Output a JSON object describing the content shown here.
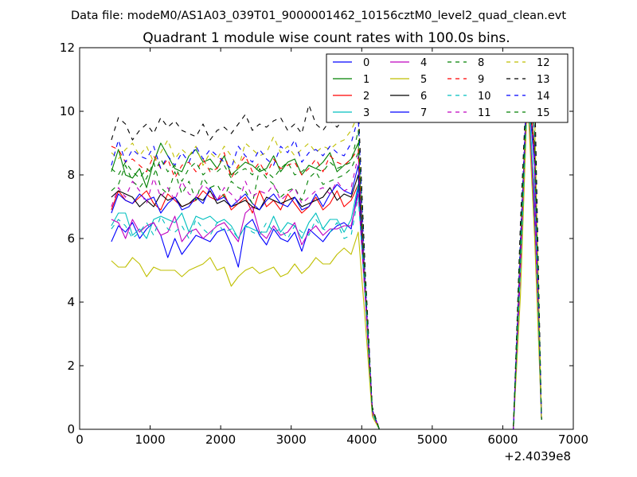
{
  "chart_data": {
    "type": "line",
    "suptitle": "Data file: modeM0/AS1A03_039T01_9000001462_10156cztM0_level2_quad_clean.evt",
    "title": "Quadrant 1 module wise count rates with 100.0s bins.",
    "xlabel": "",
    "ylabel": "",
    "xlim": [
      0,
      7000
    ],
    "ylim": [
      0,
      12
    ],
    "x_offset_label": "+2.4039e8",
    "xticks": [
      0,
      1000,
      2000,
      3000,
      4000,
      5000,
      6000,
      7000
    ],
    "yticks": [
      0,
      2,
      4,
      6,
      8,
      10,
      12
    ],
    "grid": false,
    "legend_position": "top-right",
    "x": [
      450,
      550,
      650,
      750,
      850,
      950,
      1050,
      1150,
      1250,
      1350,
      1450,
      1550,
      1650,
      1750,
      1850,
      1950,
      2050,
      2150,
      2250,
      2350,
      2450,
      2550,
      2650,
      2750,
      2850,
      2950,
      3050,
      3150,
      3250,
      3350,
      3450,
      3550,
      3650,
      3750,
      3850,
      3950,
      4050,
      4150,
      4250,
      6150,
      6250,
      6350,
      6450,
      6550
    ],
    "series": [
      {
        "name": "0",
        "color": "#0000ff",
        "dash": "solid",
        "values": [
          5.9,
          6.4,
          6.2,
          6.5,
          6.0,
          6.3,
          6.5,
          6.1,
          5.4,
          6.0,
          5.5,
          5.8,
          6.1,
          6.0,
          5.9,
          6.2,
          6.3,
          5.8,
          5.1,
          6.4,
          6.6,
          6.1,
          5.8,
          6.3,
          6.0,
          5.9,
          6.2,
          5.6,
          6.3,
          6.1,
          5.9,
          6.2,
          6.4,
          6.5,
          6.3,
          7.6,
          4.2,
          0.5,
          0,
          0,
          5.0,
          11.0,
          6.6,
          0.3
        ]
      },
      {
        "name": "1",
        "color": "#008000",
        "dash": "solid",
        "values": [
          8.1,
          8.8,
          8.0,
          7.9,
          8.2,
          7.6,
          8.4,
          9.0,
          8.6,
          8.2,
          8.1,
          8.6,
          8.8,
          8.4,
          8.5,
          8.2,
          8.6,
          8.0,
          8.2,
          8.4,
          8.3,
          8.1,
          8.2,
          8.6,
          8.1,
          8.4,
          8.5,
          8.0,
          8.3,
          8.2,
          8.4,
          8.7,
          8.1,
          8.3,
          8.5,
          9.0,
          4.5,
          0.6,
          0,
          0,
          5.8,
          11.1,
          8.9,
          0.3
        ]
      },
      {
        "name": "2",
        "color": "#ff0000",
        "dash": "solid",
        "values": [
          6.9,
          7.5,
          7.2,
          7.1,
          7.3,
          7.5,
          7.1,
          6.9,
          7.4,
          7.2,
          7.0,
          7.1,
          7.2,
          7.5,
          7.3,
          7.2,
          7.4,
          6.9,
          7.1,
          7.3,
          6.8,
          7.5,
          7.0,
          7.2,
          6.9,
          7.4,
          7.1,
          6.8,
          7.0,
          7.3,
          6.9,
          7.1,
          7.5,
          7.0,
          7.2,
          7.7,
          4.3,
          0.6,
          0,
          0,
          5.3,
          10.8,
          7.4,
          0.3
        ]
      },
      {
        "name": "3",
        "color": "#00bfbf",
        "dash": "solid",
        "values": [
          6.4,
          6.8,
          6.8,
          6.1,
          6.3,
          6.0,
          6.6,
          6.7,
          6.6,
          6.5,
          6.8,
          6.2,
          6.7,
          6.6,
          6.7,
          6.5,
          6.6,
          6.4,
          6.0,
          6.4,
          6.3,
          6.2,
          6.2,
          6.7,
          6.2,
          6.5,
          6.4,
          6.0,
          6.5,
          6.8,
          6.3,
          6.6,
          6.6,
          6.2,
          6.6,
          7.7,
          4.3,
          0.6,
          0,
          0,
          5.3,
          11.0,
          7.3,
          0.3
        ]
      },
      {
        "name": "4",
        "color": "#bf00bf",
        "dash": "solid",
        "values": [
          6.6,
          6.5,
          6.0,
          6.6,
          6.2,
          6.4,
          6.5,
          6.1,
          6.2,
          6.7,
          5.9,
          6.2,
          6.3,
          6.0,
          6.2,
          6.4,
          6.5,
          6.2,
          5.9,
          6.8,
          7.0,
          6.2,
          6.0,
          6.4,
          6.1,
          6.2,
          6.5,
          5.8,
          6.2,
          6.4,
          6.1,
          6.3,
          6.3,
          6.4,
          6.4,
          7.4,
          4.1,
          0.5,
          0,
          0,
          5.0,
          10.5,
          7.0,
          0.3
        ]
      },
      {
        "name": "5",
        "color": "#bfbf00",
        "dash": "solid",
        "values": [
          5.3,
          5.1,
          5.1,
          5.4,
          5.2,
          4.8,
          5.1,
          5.0,
          5.0,
          5.0,
          4.8,
          5.0,
          5.1,
          5.2,
          5.4,
          5.0,
          5.1,
          4.5,
          4.8,
          5.0,
          5.1,
          4.9,
          5.0,
          5.1,
          4.8,
          4.9,
          5.2,
          4.9,
          5.1,
          5.4,
          5.2,
          5.2,
          5.5,
          5.7,
          5.5,
          6.2,
          3.4,
          0.4,
          0,
          0,
          4.2,
          10.5,
          6.1,
          0.3
        ]
      },
      {
        "name": "6",
        "color": "#000000",
        "dash": "solid",
        "values": [
          7.3,
          7.5,
          7.4,
          7.3,
          7.0,
          7.2,
          7.0,
          7.4,
          7.2,
          7.3,
          7.0,
          7.1,
          7.3,
          7.2,
          7.5,
          7.1,
          7.2,
          7.0,
          7.1,
          7.2,
          7.0,
          6.9,
          7.3,
          7.2,
          7.1,
          7.2,
          7.3,
          7.0,
          7.1,
          7.2,
          7.3,
          7.6,
          7.2,
          7.4,
          7.3,
          8.0,
          4.4,
          0.6,
          0,
          0,
          5.5,
          11.2,
          8.7,
          0.3
        ]
      },
      {
        "name": "7",
        "color": "#0000ff",
        "dash": "solid",
        "values": [
          6.8,
          7.4,
          7.2,
          7.1,
          7.4,
          7.2,
          7.3,
          6.8,
          7.1,
          7.3,
          6.9,
          7.0,
          7.3,
          7.1,
          7.6,
          7.2,
          7.3,
          7.0,
          7.2,
          7.4,
          7.1,
          6.9,
          7.2,
          7.4,
          7.1,
          7.0,
          7.3,
          6.9,
          7.0,
          7.4,
          7.0,
          7.4,
          7.7,
          7.5,
          7.4,
          8.3,
          4.5,
          0.6,
          0,
          0,
          5.6,
          11.0,
          8.3,
          0.3
        ]
      },
      {
        "name": "8",
        "color": "#008000",
        "dash": "dashed",
        "values": [
          7.5,
          7.7,
          8.3,
          7.8,
          7.6,
          7.9,
          8.4,
          7.6,
          7.4,
          8.1,
          7.4,
          7.8,
          7.2,
          7.9,
          7.6,
          7.7,
          7.3,
          7.8,
          7.6,
          7.5,
          7.1,
          8.2,
          7.9,
          7.7,
          7.3,
          7.5,
          7.6,
          7.2,
          7.9,
          8.1,
          7.7,
          7.8,
          7.9,
          8.0,
          8.2,
          8.7,
          4.5,
          0.6,
          0,
          0,
          5.7,
          10.7,
          8.7,
          0.3
        ]
      },
      {
        "name": "9",
        "color": "#ff0000",
        "dash": "dashed",
        "values": [
          8.9,
          8.8,
          8.4,
          8.5,
          8.3,
          8.1,
          8.6,
          8.2,
          8.5,
          7.9,
          8.3,
          8.4,
          8.1,
          8.5,
          8.1,
          8.2,
          8.7,
          7.9,
          8.3,
          8.6,
          8.1,
          8.4,
          8.0,
          8.5,
          8.2,
          8.3,
          8.4,
          8.0,
          8.2,
          8.5,
          8.1,
          8.6,
          8.4,
          8.3,
          8.5,
          8.8,
          4.6,
          0.6,
          0,
          0,
          6.0,
          11.2,
          8.8,
          0.3
        ]
      },
      {
        "name": "10",
        "color": "#00bfbf",
        "dash": "dashed",
        "values": [
          6.3,
          6.6,
          6.4,
          6.0,
          6.2,
          6.5,
          6.1,
          6.7,
          6.3,
          6.2,
          6.4,
          6.0,
          6.6,
          6.3,
          6.1,
          6.5,
          6.2,
          6.3,
          6.0,
          6.4,
          6.2,
          6.1,
          6.5,
          6.2,
          6.3,
          6.0,
          6.4,
          6.2,
          6.1,
          6.6,
          6.3,
          6.2,
          6.5,
          6.0,
          6.1,
          7.3,
          4.2,
          0.5,
          0,
          0,
          5.0,
          10.6,
          7.6,
          0.3
        ]
      },
      {
        "name": "11",
        "color": "#bf00bf",
        "dash": "dashed",
        "values": [
          7.0,
          7.6,
          7.3,
          7.8,
          7.5,
          7.1,
          7.9,
          7.3,
          7.6,
          7.2,
          7.8,
          7.4,
          7.3,
          7.7,
          7.5,
          7.2,
          7.6,
          7.4,
          7.1,
          7.8,
          7.3,
          7.5,
          7.4,
          7.7,
          7.2,
          7.4,
          7.6,
          7.1,
          7.3,
          7.5,
          7.6,
          7.4,
          7.8,
          7.5,
          7.6,
          8.6,
          4.4,
          0.6,
          0,
          0,
          5.5,
          10.9,
          8.6,
          0.3
        ]
      },
      {
        "name": "12",
        "color": "#bfbf00",
        "dash": "dashed",
        "values": [
          8.7,
          8.5,
          8.8,
          9.0,
          8.6,
          8.9,
          8.4,
          8.7,
          9.1,
          8.5,
          8.8,
          8.6,
          8.9,
          8.3,
          8.7,
          8.5,
          8.9,
          8.6,
          8.2,
          9.0,
          8.8,
          8.6,
          8.7,
          9.2,
          8.7,
          8.9,
          8.6,
          8.8,
          9.0,
          8.7,
          8.9,
          8.8,
          9.0,
          9.1,
          9.4,
          9.9,
          4.8,
          0.6,
          0,
          0,
          6.2,
          11.1,
          10.0,
          0.3
        ]
      },
      {
        "name": "13",
        "color": "#000000",
        "dash": "dashed",
        "values": [
          9.1,
          9.8,
          9.6,
          9.1,
          9.4,
          9.6,
          9.3,
          9.8,
          9.5,
          9.7,
          9.4,
          9.3,
          9.2,
          9.6,
          9.1,
          9.4,
          9.5,
          9.3,
          9.6,
          9.9,
          9.4,
          9.6,
          9.5,
          9.7,
          9.8,
          9.4,
          9.6,
          9.3,
          10.2,
          9.6,
          9.4,
          9.7,
          9.5,
          9.8,
          10.1,
          10.2,
          5.0,
          0.7,
          0,
          0,
          6.5,
          11.6,
          11.0,
          0.3
        ]
      },
      {
        "name": "14",
        "color": "#0000ff",
        "dash": "dashed",
        "values": [
          8.3,
          9.1,
          8.4,
          8.8,
          8.6,
          8.5,
          8.9,
          8.2,
          8.6,
          8.3,
          8.7,
          8.4,
          8.9,
          8.5,
          8.8,
          8.6,
          8.4,
          8.2,
          8.9,
          8.6,
          8.4,
          8.8,
          8.5,
          8.3,
          8.9,
          8.7,
          9.1,
          8.4,
          8.7,
          8.8,
          8.6,
          8.9,
          8.7,
          8.6,
          9.0,
          9.8,
          4.7,
          0.6,
          0,
          0,
          6.0,
          11.2,
          9.4,
          0.3
        ]
      },
      {
        "name": "15",
        "color": "#008000",
        "dash": "dashed",
        "values": [
          8.2,
          8.0,
          8.4,
          8.1,
          7.9,
          8.2,
          8.0,
          8.5,
          8.1,
          8.3,
          7.8,
          8.2,
          8.4,
          8.0,
          8.2,
          8.1,
          8.3,
          7.9,
          8.1,
          8.2,
          8.0,
          8.3,
          8.1,
          7.9,
          8.2,
          8.4,
          8.0,
          8.1,
          8.3,
          8.2,
          8.1,
          8.4,
          8.2,
          8.3,
          8.4,
          9.4,
          4.6,
          0.6,
          0,
          0,
          5.9,
          10.9,
          9.5,
          0.3
        ]
      }
    ]
  }
}
